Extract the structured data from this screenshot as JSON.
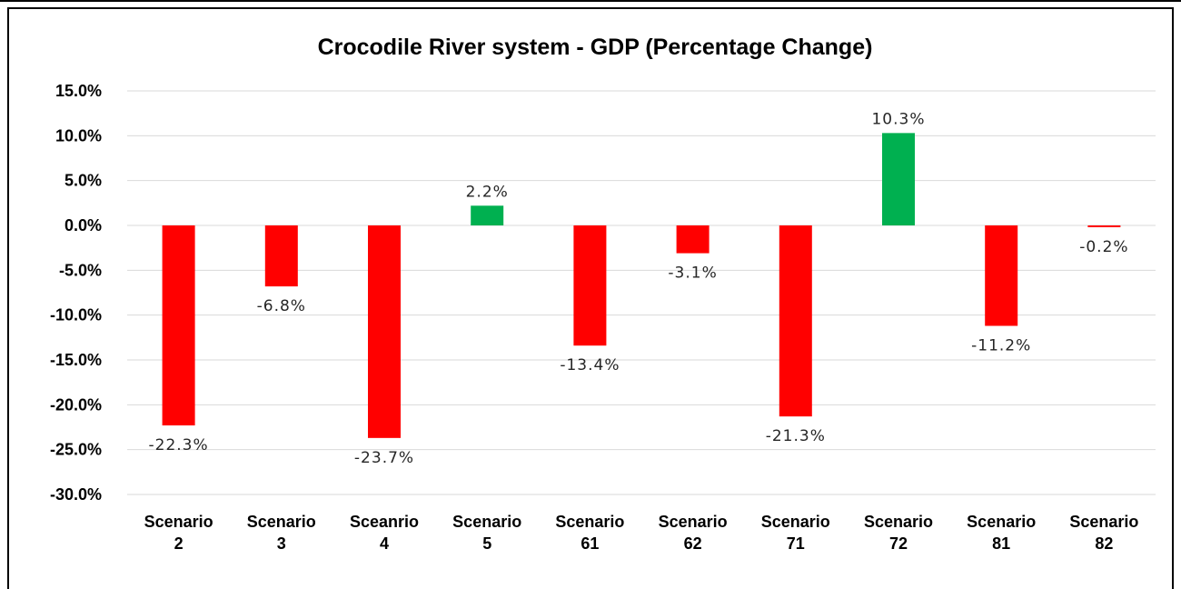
{
  "chart_data": {
    "type": "bar",
    "title": "Crocodile River system - GDP (Percentage Change)",
    "xlabel": "",
    "ylabel": "",
    "categories": [
      "Scenario 2",
      "Scenario 3",
      "Sceanrio 4",
      "Scenario 5",
      "Scenario 61",
      "Scenario 62",
      "Scenario 71",
      "Scenario 72",
      "Scenario 81",
      "Scenario 82"
    ],
    "values": [
      -22.3,
      -6.8,
      -23.7,
      2.2,
      -13.4,
      -3.1,
      -21.3,
      10.3,
      -11.2,
      -0.2
    ],
    "data_labels": [
      "-22.3%",
      "-6.8%",
      "-23.7%",
      "2.2%",
      "-13.4%",
      "-3.1%",
      "-21.3%",
      "10.3%",
      "-11.2%",
      "-0.2%"
    ],
    "ylim": [
      -30,
      15
    ],
    "yticks": [
      15,
      10,
      5,
      0,
      -5,
      -10,
      -15,
      -20,
      -25,
      -30
    ],
    "ytick_labels": [
      "15.0%",
      "10.0%",
      "5.0%",
      "0.0%",
      "-5.0%",
      "-10.0%",
      "-15.0%",
      "-20.0%",
      "-25.0%",
      "-30.0%"
    ],
    "grid": true,
    "legend": "none",
    "colors": {
      "positive": "#00B050",
      "negative": "#FF0000",
      "grid": "#D9D9D9",
      "border": "#000000"
    }
  }
}
